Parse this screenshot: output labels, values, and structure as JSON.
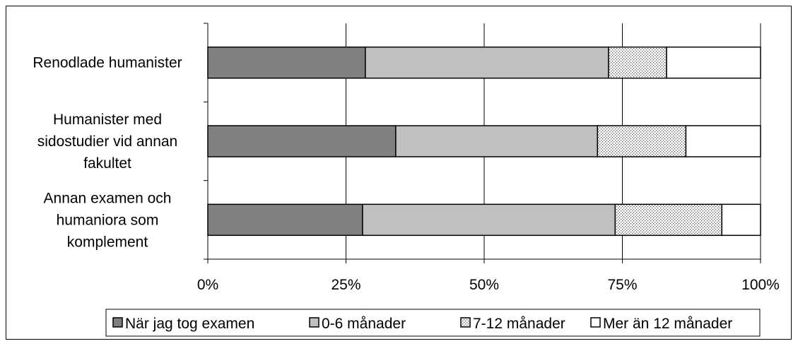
{
  "chart_data": {
    "type": "bar",
    "orientation": "horizontal",
    "stacked": "percent",
    "categories": [
      [
        "Renodlade humanister"
      ],
      [
        "Humanister med",
        "sidostudier vid annan",
        "fakultet"
      ],
      [
        "Annan examen och",
        "humaniora som",
        "komplement"
      ]
    ],
    "series": [
      {
        "name": "När jag tog examen",
        "values": [
          28.5,
          34.0,
          28.0
        ],
        "color": "#808080",
        "pattern": "solid"
      },
      {
        "name": "0-6 månader",
        "values": [
          44.0,
          36.5,
          45.7
        ],
        "color": "#c0c0c0",
        "pattern": "solid"
      },
      {
        "name": "7-12 månader",
        "values": [
          10.5,
          16.0,
          19.3
        ],
        "color": "#ffffff",
        "pattern": "dots"
      },
      {
        "name": "Mer än 12 månader",
        "values": [
          17.0,
          13.5,
          7.0
        ],
        "color": "#ffffff",
        "pattern": "solid"
      }
    ],
    "x_ticks": [
      "0%",
      "25%",
      "50%",
      "75%",
      "100%"
    ],
    "xlim": [
      0,
      100
    ],
    "grid": "vertical",
    "legend_position": "bottom"
  }
}
